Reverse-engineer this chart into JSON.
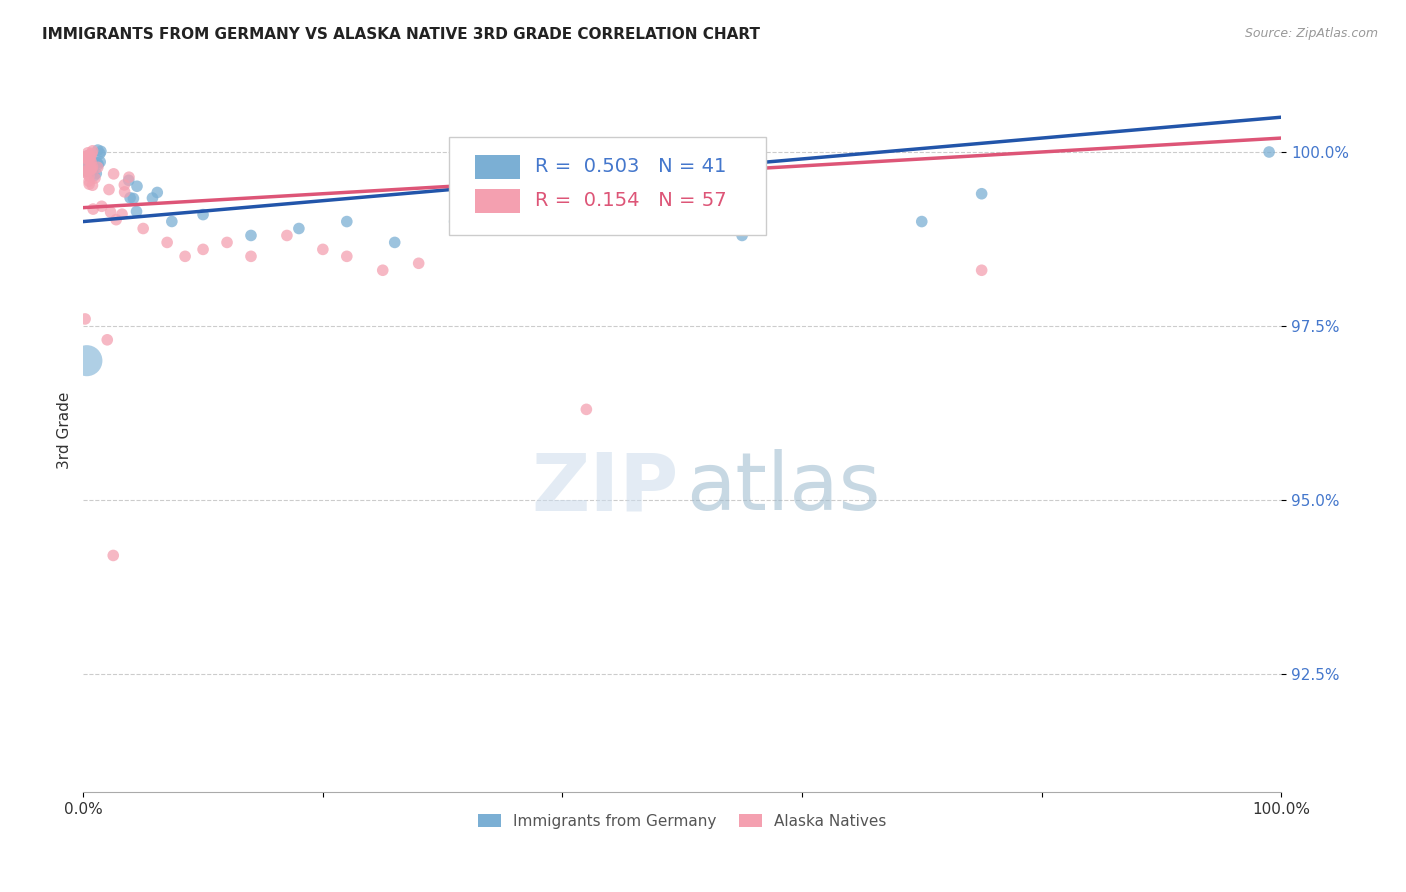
{
  "title": "IMMIGRANTS FROM GERMANY VS ALASKA NATIVE 3RD GRADE CORRELATION CHART",
  "source": "Source: ZipAtlas.com",
  "ylabel": "3rd Grade",
  "ytick_labels": [
    "92.5%",
    "95.0%",
    "97.5%",
    "100.0%"
  ],
  "ytick_values": [
    92.5,
    95.0,
    97.5,
    100.0
  ],
  "xlim": [
    0.0,
    100.0
  ],
  "ylim": [
    90.8,
    101.2
  ],
  "legend_label_blue": "Immigrants from Germany",
  "legend_label_pink": "Alaska Natives",
  "r_blue": 0.503,
  "n_blue": 41,
  "r_pink": 0.154,
  "n_pink": 57,
  "blue_color": "#7bafd4",
  "pink_color": "#f4a0b0",
  "trendline_blue": "#2255aa",
  "trendline_pink": "#dd5577",
  "blue_trend_x": [
    0.0,
    100.0
  ],
  "blue_trend_y": [
    99.0,
    100.5
  ],
  "pink_trend_x": [
    0.0,
    100.0
  ],
  "pink_trend_y": [
    99.2,
    100.2
  ],
  "blue_large_x": 0.3,
  "blue_large_y": 97.0,
  "blue_large_size": 500
}
